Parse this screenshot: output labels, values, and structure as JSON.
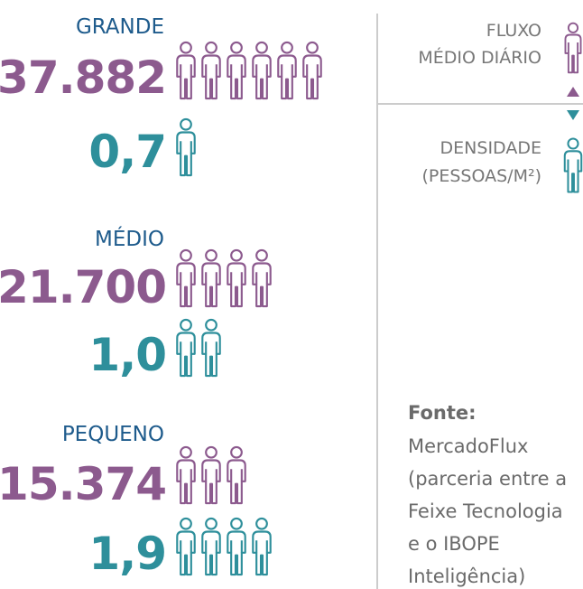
{
  "groups": [
    {
      "label": "GRANDE",
      "flow": "37.882",
      "density": "0,7"
    },
    {
      "label": "MÉDIO",
      "flow": "21.700",
      "density": "1,0"
    },
    {
      "label": "PEQUENO",
      "flow": "15.374",
      "density": "1,9"
    }
  ],
  "legend": {
    "flow": [
      "FLUXO",
      "MÉDIO DIÁRIO"
    ],
    "density": [
      "DENSIDADE",
      "(PESSOAS/M²)"
    ]
  },
  "source": {
    "title": "Fonte:",
    "lines": [
      "MercadoFlux",
      "(parceria entre a",
      "Feixe Tecnologia",
      "e o IBOPE",
      "Inteligência)"
    ]
  }
}
